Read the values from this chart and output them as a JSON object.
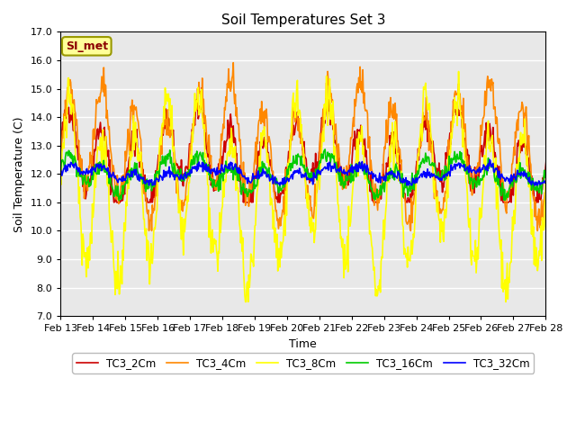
{
  "title": "Soil Temperatures Set 3",
  "xlabel": "Time",
  "ylabel": "Soil Temperature (C)",
  "ylim": [
    7.0,
    17.0
  ],
  "yticks": [
    7.0,
    8.0,
    9.0,
    10.0,
    11.0,
    12.0,
    13.0,
    14.0,
    15.0,
    16.0,
    17.0
  ],
  "ytick_labels": [
    "7.0",
    "8.0",
    "9.0",
    "10.0",
    "11.0",
    "12.0",
    "13.0",
    "14.0",
    "15.0",
    "16.0",
    "17.0"
  ],
  "xtick_labels": [
    "Feb 13",
    "Feb 14",
    "Feb 15",
    "Feb 16",
    "Feb 17",
    "Feb 18",
    "Feb 19",
    "Feb 20",
    "Feb 21",
    "Feb 22",
    "Feb 23",
    "Feb 24",
    "Feb 25",
    "Feb 26",
    "Feb 27",
    "Feb 28"
  ],
  "series_colors": {
    "TC3_2Cm": "#cc0000",
    "TC3_4Cm": "#ff8800",
    "TC3_8Cm": "#ffff00",
    "TC3_16Cm": "#00cc00",
    "TC3_32Cm": "#0000ff"
  },
  "legend_label": "SI_met",
  "legend_bg": "#ffff99",
  "legend_border": "#999900",
  "plot_bg": "#e8e8e8",
  "fig_bg": "#ffffff",
  "linewidth": 1.2
}
